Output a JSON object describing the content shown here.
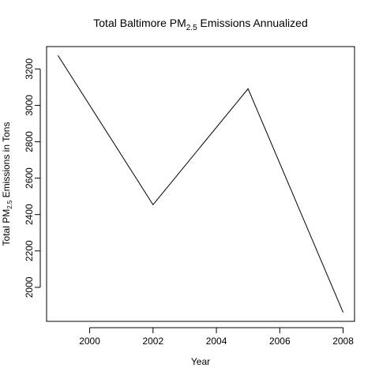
{
  "chart_data": {
    "type": "line",
    "title": {
      "prefix": "Total Baltimore PM",
      "sub": "2.5",
      "suffix": " Emissions Annualized"
    },
    "xlabel": "Year",
    "ylabel": {
      "prefix": "Total PM",
      "sub": "2.5",
      "suffix": " Emissions in Tons"
    },
    "x": [
      1999,
      2002,
      2005,
      2008
    ],
    "series": [
      {
        "values": [
          3274.18,
          2453.92,
          3091.35,
          1862.28
        ]
      }
    ],
    "xlim": [
      1998.64,
      2008.36
    ],
    "ylim": [
      1813.0,
      3323.0
    ],
    "xticks": [
      2000,
      2002,
      2004,
      2006,
      2008
    ],
    "yticks": [
      2000,
      2200,
      2400,
      2600,
      2800,
      3000,
      3200
    ],
    "line_color": "#000000",
    "grid": false
  }
}
